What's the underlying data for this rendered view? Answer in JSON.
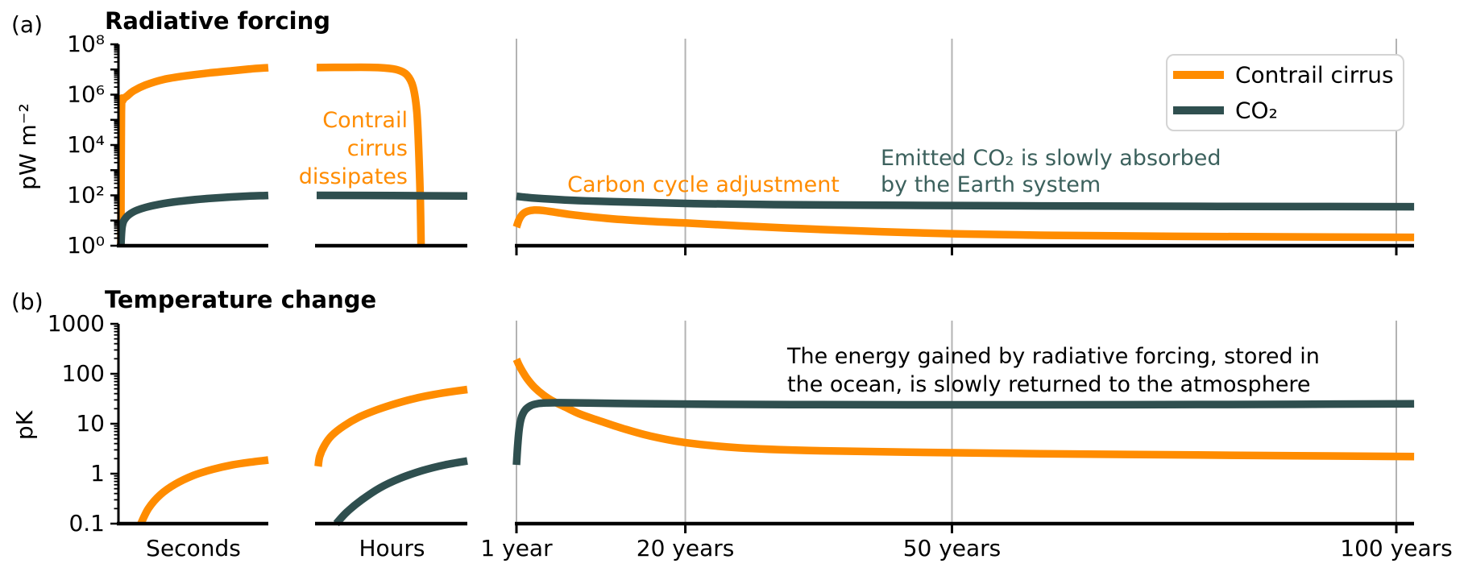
{
  "figure": {
    "panel_a_tag": "(a)",
    "panel_b_tag": "(b)"
  },
  "colors": {
    "contrail": "#FF8C00",
    "co2": "#2F4F4F",
    "co2_text": "#3C615D",
    "annotation_black": "#000000",
    "grid": "#b3b3b3",
    "axis": "#000000",
    "legend_border": "#d4d4d4",
    "legend_bg": "#ffffff"
  },
  "legend": {
    "entries": [
      {
        "label": "Contrail cirrus",
        "color_key": "contrail"
      },
      {
        "label": "CO₂",
        "color_key": "co2"
      }
    ]
  },
  "chart_data": [
    {
      "id": "radiative-forcing",
      "type": "line",
      "panel": "a",
      "title": "Radiative forcing",
      "ylabel": "pW m⁻²",
      "yscale": "log",
      "ylim": [
        1,
        100000000
      ],
      "grid": "vertical-years-only",
      "yticks": [
        {
          "v": 100000000,
          "label": "10⁸"
        },
        {
          "v": 1000000,
          "label": "10⁶"
        },
        {
          "v": 10000,
          "label": "10⁴"
        },
        {
          "v": 100,
          "label": "10²"
        },
        {
          "v": 1,
          "label": "10⁰"
        }
      ],
      "series": [
        {
          "name": "Contrail cirrus",
          "color_key": "contrail",
          "seconds": [
            [
              0.016,
              1
            ],
            [
              0.02,
              200000
            ],
            [
              0.03,
              600000
            ],
            [
              0.06,
              900000
            ],
            [
              0.1,
              1400000
            ],
            [
              0.18,
              2400000
            ],
            [
              0.3,
              4000000
            ],
            [
              0.45,
              5600000
            ],
            [
              0.6,
              7200000
            ],
            [
              0.75,
              8800000
            ],
            [
              0.88,
              10500000
            ],
            [
              1,
              11800000
            ]
          ],
          "hours": [
            [
              0,
              11900000
            ],
            [
              0.2,
              12200000
            ],
            [
              0.35,
              12200000
            ],
            [
              0.45,
              11500000
            ],
            [
              0.54,
              9500000
            ],
            [
              0.6,
              6000000
            ],
            [
              0.64,
              2000000
            ],
            [
              0.665,
              200000
            ],
            [
              0.678,
              5000
            ],
            [
              0.688,
              60
            ],
            [
              0.693,
              1.05
            ]
          ],
          "years": [
            [
              1,
              5.5
            ],
            [
              1.3,
              11
            ],
            [
              1.7,
              18
            ],
            [
              2.2,
              23
            ],
            [
              3,
              26
            ],
            [
              4,
              25
            ],
            [
              5.5,
              21
            ],
            [
              7,
              17.5
            ],
            [
              9,
              14.5
            ],
            [
              12,
              11.5
            ],
            [
              16,
              9.3
            ],
            [
              20,
              8
            ],
            [
              26,
              6.2
            ],
            [
              34,
              4.6
            ],
            [
              42,
              3.6
            ],
            [
              50,
              3
            ],
            [
              60,
              2.6
            ],
            [
              75,
              2.35
            ],
            [
              102,
              2.15
            ]
          ]
        },
        {
          "name": "CO₂",
          "color_key": "co2",
          "seconds": [
            [
              0.016,
              1
            ],
            [
              0.025,
              6
            ],
            [
              0.05,
              13
            ],
            [
              0.1,
              22
            ],
            [
              0.18,
              33
            ],
            [
              0.3,
              47
            ],
            [
              0.45,
              62
            ],
            [
              0.6,
              75
            ],
            [
              0.75,
              86
            ],
            [
              0.88,
              94
            ],
            [
              1,
              99
            ]
          ],
          "hours": [
            [
              0,
              100
            ],
            [
              0.5,
              98
            ],
            [
              1,
              94
            ]
          ],
          "years": [
            [
              1,
              92
            ],
            [
              2,
              84
            ],
            [
              3,
              78
            ],
            [
              5,
              70
            ],
            [
              8,
              62
            ],
            [
              12,
              56
            ],
            [
              20,
              48
            ],
            [
              30,
              43
            ],
            [
              45,
              40
            ],
            [
              60,
              38
            ],
            [
              80,
              36.5
            ],
            [
              102,
              35.5
            ]
          ]
        }
      ],
      "annotations": [
        {
          "lines": [
            "Contrail",
            "cirrus",
            "dissipates"
          ],
          "color_key": "contrail",
          "anchor": "end"
        },
        {
          "lines": [
            "Carbon cycle adjustment"
          ],
          "color_key": "contrail",
          "anchor": "middle"
        },
        {
          "lines": [
            "Emitted CO₂ is slowly absorbed",
            "by the Earth system"
          ],
          "color_key": "co2_text",
          "anchor": "start"
        }
      ]
    },
    {
      "id": "temperature-change",
      "type": "line",
      "panel": "b",
      "title": "Temperature change",
      "ylabel": "pK",
      "yscale": "log",
      "ylim": [
        0.1,
        1000
      ],
      "grid": "vertical-years-only",
      "yticks": [
        {
          "v": 1000,
          "label": "1000"
        },
        {
          "v": 100,
          "label": "100"
        },
        {
          "v": 10,
          "label": "10"
        },
        {
          "v": 1,
          "label": "1"
        },
        {
          "v": 0.1,
          "label": "0.1"
        }
      ],
      "x_axis": {
        "segment_labels": [
          "Seconds",
          "Hours"
        ],
        "year_ticks": [
          {
            "year": 1,
            "label": "1 year"
          },
          {
            "year": 20,
            "label": "20 years"
          },
          {
            "year": 50,
            "label": "50 years"
          },
          {
            "year": 100,
            "label": "100 years"
          }
        ]
      },
      "series": [
        {
          "name": "Contrail cirrus",
          "color_key": "contrail",
          "seconds": [
            [
              0.15,
              0.1
            ],
            [
              0.2,
              0.2
            ],
            [
              0.28,
              0.38
            ],
            [
              0.38,
              0.62
            ],
            [
              0.5,
              0.92
            ],
            [
              0.63,
              1.22
            ],
            [
              0.76,
              1.5
            ],
            [
              0.88,
              1.7
            ],
            [
              1,
              1.88
            ]
          ],
          "hours": [
            [
              0.01,
              1.4
            ],
            [
              0.02,
              2.2
            ],
            [
              0.05,
              3.6
            ],
            [
              0.1,
              5.8
            ],
            [
              0.18,
              9
            ],
            [
              0.28,
              13.5
            ],
            [
              0.4,
              19
            ],
            [
              0.52,
              25
            ],
            [
              0.65,
              32
            ],
            [
              0.78,
              38.5
            ],
            [
              0.9,
              44
            ],
            [
              1,
              48.5
            ]
          ],
          "years": [
            [
              1,
              195
            ],
            [
              1.3,
              148
            ],
            [
              1.7,
              110
            ],
            [
              2.2,
              80
            ],
            [
              3,
              54
            ],
            [
              4,
              38
            ],
            [
              5,
              29
            ],
            [
              6.5,
              21.5
            ],
            [
              8,
              16
            ],
            [
              10,
              12
            ],
            [
              13,
              8
            ],
            [
              16,
              5.7
            ],
            [
              20,
              4.2
            ],
            [
              26,
              3.3
            ],
            [
              34,
              2.9
            ],
            [
              45,
              2.7
            ],
            [
              60,
              2.5
            ],
            [
              80,
              2.35
            ],
            [
              102,
              2.2
            ]
          ]
        },
        {
          "name": "CO₂",
          "color_key": "co2",
          "seconds": [],
          "hours": [
            [
              0.13,
              0.1
            ],
            [
              0.2,
              0.17
            ],
            [
              0.3,
              0.3
            ],
            [
              0.42,
              0.52
            ],
            [
              0.55,
              0.8
            ],
            [
              0.7,
              1.15
            ],
            [
              0.85,
              1.5
            ],
            [
              1,
              1.8
            ]
          ],
          "years": [
            [
              1,
              1.5
            ],
            [
              1.15,
              4
            ],
            [
              1.35,
              9
            ],
            [
              1.6,
              14
            ],
            [
              2,
              19
            ],
            [
              2.6,
              23
            ],
            [
              3.4,
              25.3
            ],
            [
              4.5,
              26.2
            ],
            [
              6,
              26.4
            ],
            [
              9,
              26
            ],
            [
              14,
              25.3
            ],
            [
              22,
              24.6
            ],
            [
              32,
              24.2
            ],
            [
              45,
              23.9
            ],
            [
              60,
              23.9
            ],
            [
              80,
              24.3
            ],
            [
              102,
              25
            ]
          ]
        }
      ],
      "annotations": [
        {
          "lines": [
            "The energy gained by radiative forcing, stored in",
            "the ocean, is slowly returned to the atmosphere"
          ],
          "color_key": "annotation_black",
          "anchor": "start"
        }
      ]
    }
  ]
}
